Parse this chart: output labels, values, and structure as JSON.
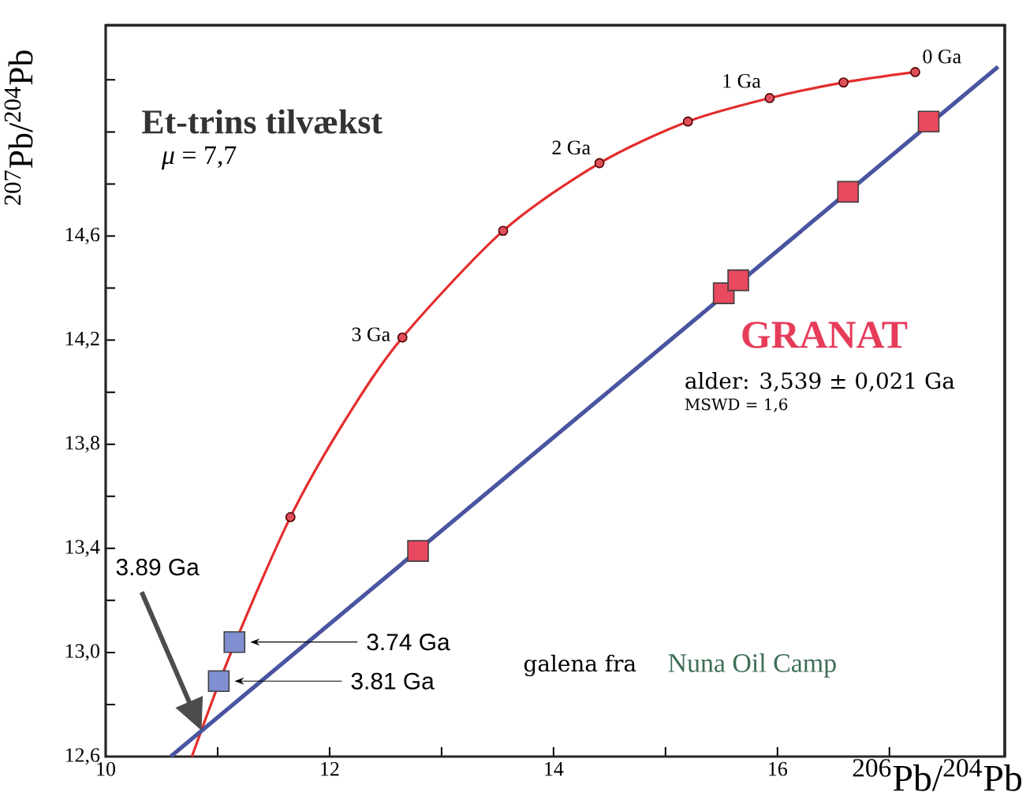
{
  "chart_data": {
    "type": "scatter",
    "xlabel": "$^{206}$Pb/$^{204}$Pb",
    "ylabel": "$^{207}$Pb/$^{204}$Pb",
    "xlim": [
      10,
      18.03
    ],
    "ylim": [
      12.6,
      15.41
    ],
    "xticks": [
      10,
      {
        "value": 11,
        "label": null
      },
      12,
      {
        "value": 13,
        "label": null
      },
      14,
      {
        "value": 15,
        "label": null
      },
      16,
      {
        "value": 17,
        "label": null
      }
    ],
    "yticks": [
      {
        "value": 12.6,
        "label": "12,6"
      },
      {
        "value": 12.8,
        "label": null
      },
      {
        "value": 13.0,
        "label": "13,0"
      },
      {
        "value": 13.2,
        "label": null
      },
      {
        "value": 13.4,
        "label": "13,4"
      },
      {
        "value": 13.6,
        "label": null
      },
      {
        "value": 13.8,
        "label": "13,8"
      },
      {
        "value": 14.0,
        "label": null
      },
      {
        "value": 14.2,
        "label": "14,2"
      },
      {
        "value": 14.4,
        "label": null
      },
      {
        "value": 14.6,
        "label": "14,6"
      },
      {
        "value": 14.8,
        "label": null
      },
      {
        "value": 15.0,
        "label": null
      },
      {
        "value": 15.2,
        "label": null
      }
    ],
    "series": [
      {
        "type": "line",
        "color": "#e42d2d",
        "marker": "none",
        "x": [
          10.77,
          11.12,
          11.65,
          12.15,
          12.65,
          13.55,
          14.41,
          15.2,
          15.93,
          16.59,
          17.23
        ],
        "values": [
          12.6,
          13.0,
          13.52,
          13.9,
          14.21,
          14.62,
          14.88,
          15.04,
          15.13,
          15.19,
          15.23
        ]
      },
      {
        "type": "scatter",
        "color": "#e0505a",
        "marker": "circle",
        "x": [
          11.65,
          12.65,
          13.55,
          14.41,
          15.2,
          15.93,
          16.59,
          17.23
        ],
        "values": [
          13.52,
          14.21,
          14.62,
          14.88,
          15.04,
          15.13,
          15.19,
          15.23
        ]
      },
      {
        "type": "line",
        "color": "#4a55a0",
        "marker": "none",
        "x": [
          10.58,
          17.97
        ],
        "values": [
          12.6,
          15.25
        ]
      },
      {
        "type": "scatter",
        "color": "#e8495e",
        "marker": "square",
        "x": [
          12.79,
          15.52,
          15.65,
          16.63,
          17.35
        ],
        "values": [
          13.39,
          14.38,
          14.43,
          14.77,
          15.04
        ]
      },
      {
        "type": "scatter",
        "color": "#7f8fd0",
        "marker": "square",
        "x": [
          11.15,
          11.01
        ],
        "values": [
          13.04,
          12.89
        ]
      }
    ],
    "annotations": [
      "**Et-trins tilvækst**",
      "*μ* = 7,7",
      "GRANAT",
      "alder: 3,539 ± 0,021 Ga",
      "MSWD = 1,6",
      "galena fra",
      "Nuna Oil Camp",
      {
        "text": "0 Ga",
        "x": 17.23,
        "y": 15.23
      },
      {
        "text": "1 Ga",
        "x": 15.93,
        "y": 15.13
      },
      {
        "text": "2 Ga",
        "x": 14.41,
        "y": 14.88
      },
      {
        "text": "3 Ga",
        "x": 12.65,
        "y": 14.21
      },
      "3.74 Ga",
      "3.81 Ga",
      "3.89 Ga"
    ]
  }
}
